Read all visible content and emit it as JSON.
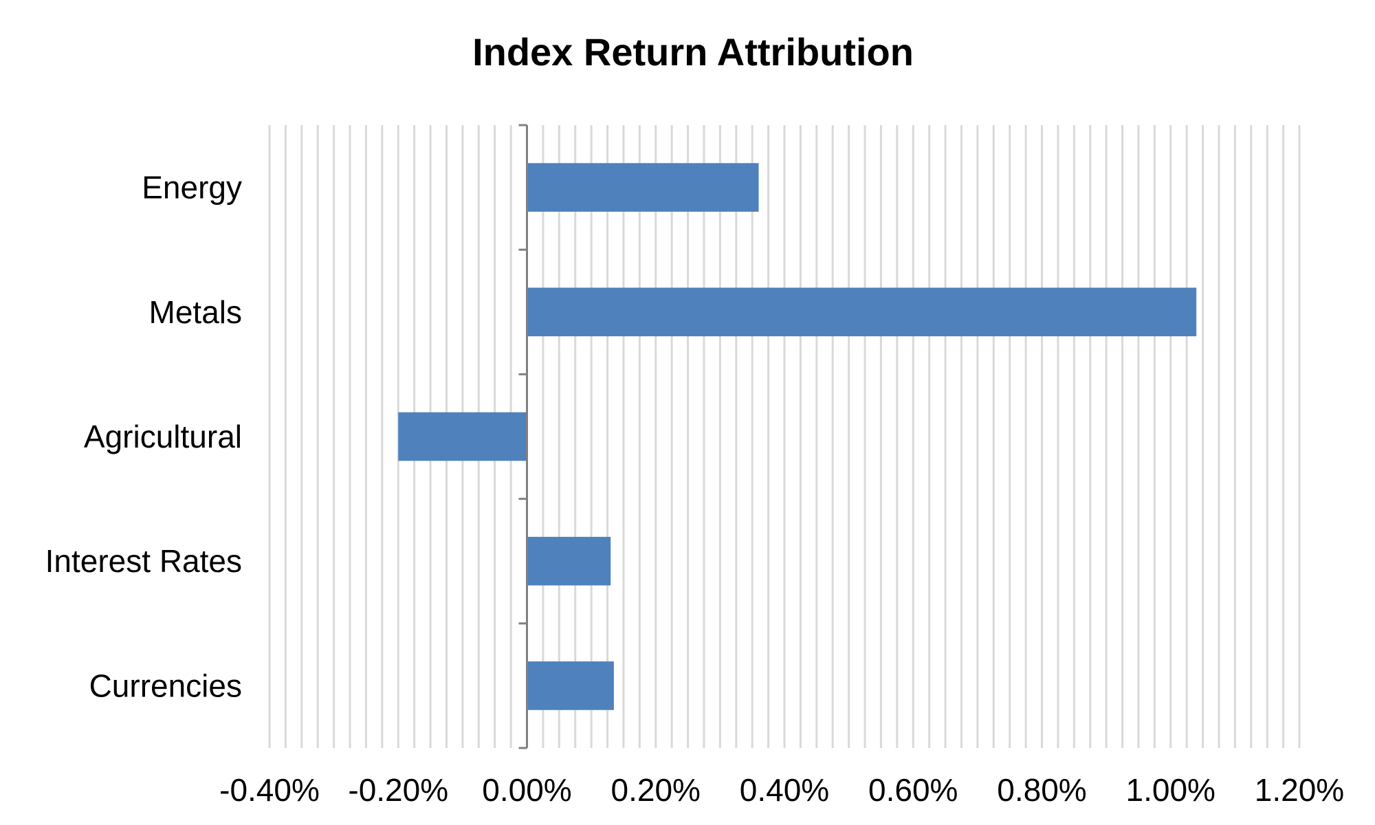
{
  "chart_data": {
    "type": "bar",
    "orientation": "horizontal",
    "title": "Index Return Attribution",
    "categories": [
      "Energy",
      "Metals",
      "Agricultural",
      "Interest Rates",
      "Currencies"
    ],
    "values": [
      0.0036,
      0.0104,
      -0.002,
      0.0013,
      0.00135
    ],
    "xlim": [
      -0.004,
      0.012
    ],
    "x_ticks": [
      -0.004,
      -0.002,
      0,
      0.002,
      0.004,
      0.006,
      0.008,
      0.01,
      0.012
    ],
    "x_tick_labels": [
      "-0.40%",
      "-0.20%",
      "0.00%",
      "0.20%",
      "0.40%",
      "0.60%",
      "0.80%",
      "1.00%",
      "1.20%"
    ],
    "xlabel": "",
    "ylabel": "",
    "grid": "vertical",
    "legend": "none",
    "colors": {
      "bar": "#4f81bd",
      "grid": "#d9d9d9",
      "axis": "#808080"
    }
  }
}
